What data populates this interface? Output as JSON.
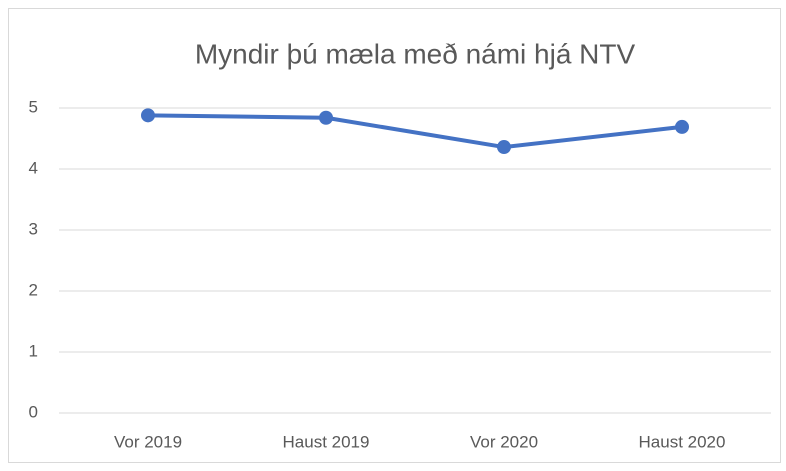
{
  "chart_data": {
    "type": "line",
    "title": "Myndir þú mæla með námi hjá NTV",
    "categories": [
      "Vor 2019",
      "Haust 2019",
      "Vor 2020",
      "Haust 2020"
    ],
    "series": [
      {
        "color": "#4472c4",
        "values": [
          4.88,
          4.84,
          4.36,
          4.69
        ]
      }
    ],
    "ylim": [
      0,
      5
    ],
    "yticks": [
      0,
      1,
      2,
      3,
      4,
      5
    ],
    "grid": true
  }
}
